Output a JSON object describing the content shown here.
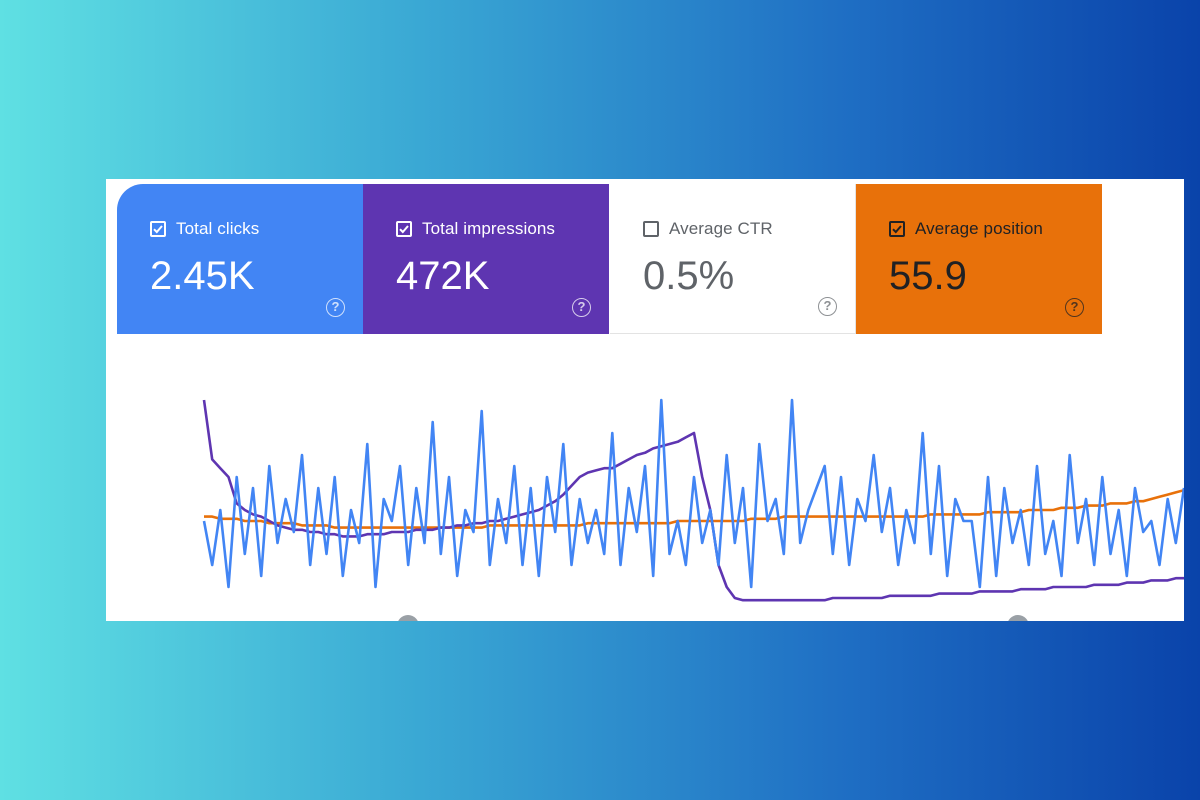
{
  "metrics": [
    {
      "key": "clicks",
      "label": "Total clicks",
      "value": "2.45K",
      "checked": true,
      "color": "#4285f4"
    },
    {
      "key": "impressions",
      "label": "Total impressions",
      "value": "472K",
      "checked": true,
      "color": "#5e35b1"
    },
    {
      "key": "ctr",
      "label": "Average CTR",
      "value": "0.5%",
      "checked": false,
      "color": "#ffffff"
    },
    {
      "key": "position",
      "label": "Average position",
      "value": "55.9",
      "checked": true,
      "color": "#e8710a"
    }
  ],
  "help_glyph": "?",
  "chart_data": {
    "type": "line",
    "title": "",
    "xlabel": "",
    "ylabel": "",
    "ylim": [
      0,
      100
    ],
    "x": [
      0,
      1,
      2,
      3,
      4,
      5,
      6,
      7,
      8,
      9,
      10,
      11,
      12,
      13,
      14,
      15,
      16,
      17,
      18,
      19,
      20,
      21,
      22,
      23,
      24,
      25,
      26,
      27,
      28,
      29,
      30,
      31,
      32,
      33,
      34,
      35,
      36,
      37,
      38,
      39,
      40,
      41,
      42,
      43,
      44,
      45,
      46,
      47,
      48,
      49,
      50,
      51,
      52,
      53,
      54,
      55,
      56,
      57,
      58,
      59,
      60,
      61,
      62,
      63,
      64,
      65,
      66,
      67,
      68,
      69,
      70,
      71,
      72,
      73,
      74,
      75,
      76,
      77,
      78,
      79,
      80,
      81,
      82,
      83,
      84,
      85,
      86,
      87,
      88,
      89,
      90,
      91,
      92,
      93,
      94,
      95,
      96,
      97,
      98,
      99,
      100,
      101,
      102,
      103,
      104,
      105,
      106,
      107,
      108,
      109,
      110,
      111,
      112,
      113,
      114,
      115,
      116,
      117,
      118,
      119,
      120
    ],
    "series": [
      {
        "name": "Total clicks",
        "color": "#4285f4",
        "values": [
          40,
          20,
          45,
          10,
          60,
          25,
          55,
          15,
          65,
          30,
          50,
          35,
          70,
          20,
          55,
          25,
          60,
          15,
          45,
          30,
          75,
          10,
          50,
          40,
          65,
          20,
          55,
          30,
          85,
          25,
          60,
          15,
          45,
          35,
          90,
          20,
          50,
          30,
          65,
          20,
          55,
          15,
          60,
          35,
          75,
          20,
          50,
          30,
          45,
          25,
          80,
          20,
          55,
          35,
          65,
          15,
          95,
          25,
          40,
          20,
          60,
          30,
          45,
          20,
          70,
          30,
          55,
          10,
          75,
          40,
          50,
          25,
          95,
          30,
          45,
          55,
          65,
          25,
          60,
          20,
          50,
          40,
          70,
          35,
          55,
          20,
          45,
          30,
          80,
          25,
          65,
          15,
          50,
          40,
          40,
          10,
          60,
          15,
          55,
          30,
          45,
          20,
          65,
          25,
          40,
          15,
          70,
          30,
          50,
          20,
          60,
          25,
          45,
          15,
          55,
          35,
          40,
          20,
          50,
          30,
          55
        ]
      },
      {
        "name": "Total impressions",
        "color": "#5e35b1",
        "values": [
          95,
          68,
          64,
          60,
          48,
          45,
          43,
          42,
          40,
          38,
          37,
          36,
          36,
          35,
          35,
          34,
          34,
          33,
          33,
          33,
          34,
          34,
          34,
          35,
          35,
          35,
          36,
          36,
          36,
          37,
          37,
          38,
          38,
          39,
          39,
          40,
          40,
          41,
          42,
          43,
          44,
          45,
          47,
          49,
          52,
          56,
          60,
          62,
          63,
          64,
          64,
          66,
          68,
          70,
          71,
          73,
          74,
          75,
          76,
          78,
          80,
          60,
          45,
          20,
          10,
          5,
          4,
          4,
          4,
          4,
          4,
          4,
          4,
          4,
          4,
          4,
          4,
          5,
          5,
          5,
          5,
          5,
          5,
          5,
          6,
          6,
          6,
          6,
          6,
          6,
          7,
          7,
          7,
          7,
          7,
          8,
          8,
          8,
          8,
          8,
          9,
          9,
          9,
          9,
          10,
          10,
          10,
          10,
          10,
          11,
          11,
          11,
          11,
          12,
          12,
          12,
          13,
          13,
          13,
          14,
          14
        ]
      },
      {
        "name": "Average position",
        "color": "#e8710a",
        "values": [
          42,
          42,
          41,
          41,
          41,
          40,
          40,
          40,
          39,
          39,
          39,
          39,
          38,
          38,
          38,
          38,
          37,
          37,
          37,
          37,
          37,
          37,
          37,
          37,
          37,
          37,
          37,
          37,
          37,
          37,
          37,
          37,
          37,
          37,
          37,
          38,
          38,
          38,
          38,
          38,
          38,
          38,
          38,
          38,
          38,
          38,
          38,
          39,
          39,
          39,
          39,
          39,
          39,
          39,
          39,
          39,
          39,
          39,
          40,
          40,
          40,
          40,
          40,
          40,
          40,
          40,
          40,
          41,
          41,
          41,
          41,
          42,
          42,
          42,
          42,
          42,
          42,
          42,
          42,
          42,
          42,
          42,
          42,
          42,
          42,
          42,
          42,
          42,
          42,
          43,
          43,
          43,
          43,
          43,
          43,
          43,
          44,
          44,
          44,
          44,
          44,
          45,
          45,
          45,
          45,
          46,
          46,
          46,
          47,
          47,
          47,
          48,
          48,
          48,
          49,
          49,
          50,
          51,
          52,
          53,
          54
        ]
      }
    ]
  }
}
